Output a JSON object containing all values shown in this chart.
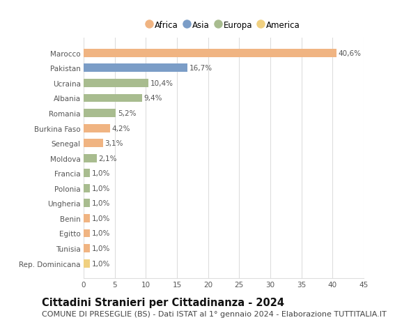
{
  "countries": [
    "Marocco",
    "Pakistan",
    "Ucraina",
    "Albania",
    "Romania",
    "Burkina Faso",
    "Senegal",
    "Moldova",
    "Francia",
    "Polonia",
    "Ungheria",
    "Benin",
    "Egitto",
    "Tunisia",
    "Rep. Dominicana"
  ],
  "values": [
    40.6,
    16.7,
    10.4,
    9.4,
    5.2,
    4.2,
    3.1,
    2.1,
    1.0,
    1.0,
    1.0,
    1.0,
    1.0,
    1.0,
    1.0
  ],
  "labels": [
    "40,6%",
    "16,7%",
    "10,4%",
    "9,4%",
    "5,2%",
    "4,2%",
    "3,1%",
    "2,1%",
    "1,0%",
    "1,0%",
    "1,0%",
    "1,0%",
    "1,0%",
    "1,0%",
    "1,0%"
  ],
  "continents": [
    "Africa",
    "Asia",
    "Europa",
    "Europa",
    "Europa",
    "Africa",
    "Africa",
    "Europa",
    "Europa",
    "Europa",
    "Europa",
    "Africa",
    "Africa",
    "Africa",
    "America"
  ],
  "continent_colors": {
    "Africa": "#F0B482",
    "Asia": "#7B9DC7",
    "Europa": "#A8BC8F",
    "America": "#F0D080"
  },
  "legend_items": [
    "Africa",
    "Asia",
    "Europa",
    "America"
  ],
  "title": "Cittadini Stranieri per Cittadinanza - 2024",
  "subtitle": "COMUNE DI PRESEGLIE (BS) - Dati ISTAT al 1° gennaio 2024 - Elaborazione TUTTITALIA.IT",
  "xlim": [
    0,
    45
  ],
  "xticks": [
    0,
    5,
    10,
    15,
    20,
    25,
    30,
    35,
    40,
    45
  ],
  "background_color": "#ffffff",
  "grid_color": "#dddddd",
  "title_fontsize": 10.5,
  "subtitle_fontsize": 8,
  "label_fontsize": 7.5,
  "tick_fontsize": 7.5,
  "legend_fontsize": 8.5
}
